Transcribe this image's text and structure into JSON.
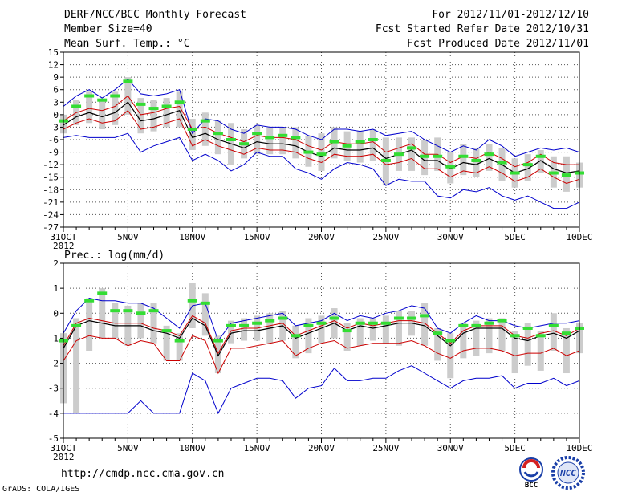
{
  "header": {
    "title": "DERF/NCC/BCC Monthly Forecast",
    "member_size": "Member Size=40",
    "variable": "Mean Surf. Temp.: °C",
    "forecast_for": "For 2012/11/01-2012/12/10",
    "fcst_started": "Fcst Started Refer Date 2012/10/31",
    "fcst_produced": "Fcst Produced Date 2012/11/01"
  },
  "footer": {
    "url": "http://cmdp.ncc.cma.gov.cn",
    "credit": "GrADS: COLA/IGES",
    "logo_bcc": "BCC",
    "logo_ncc": "NCC"
  },
  "colors": {
    "background": "#ffffff",
    "envelope": "#0000cc",
    "spread": "#cc0000",
    "mean": "#000000",
    "box": "#cccccc",
    "observed": "#33dd33",
    "grid": "#555555"
  },
  "x_axis": {
    "tick_labels": [
      "31OCT",
      "5NOV",
      "10NOV",
      "15NOV",
      "20NOV",
      "25NOV",
      "30NOV",
      "5DEC",
      "10DEC"
    ],
    "tick_days": [
      0,
      5,
      10,
      15,
      20,
      25,
      30,
      35,
      40
    ],
    "year_label": "2012",
    "day_range": [
      0,
      40
    ]
  },
  "chart_data": [
    {
      "type": "line",
      "title": "Mean Surf. Temp.: °C",
      "ylim": [
        -27,
        15
      ],
      "ytick_step": 3,
      "days": [
        0,
        1,
        2,
        3,
        4,
        5,
        6,
        7,
        8,
        9,
        10,
        11,
        12,
        13,
        14,
        15,
        16,
        17,
        18,
        19,
        20,
        21,
        22,
        23,
        24,
        25,
        26,
        27,
        28,
        29,
        30,
        31,
        32,
        33,
        34,
        35,
        36,
        37,
        38,
        39,
        40
      ],
      "series": [
        {
          "name": "max",
          "values": [
            2.0,
            4.5,
            6.0,
            4.0,
            6.0,
            8.5,
            5.0,
            4.5,
            5.0,
            6.0,
            -4.5,
            -1.0,
            -1.5,
            -3.5,
            -4.5,
            -2.5,
            -3.0,
            -3.0,
            -3.5,
            -5.0,
            -6.0,
            -3.5,
            -3.5,
            -4.0,
            -3.5,
            -5.0,
            -4.5,
            -4.0,
            -6.0,
            -7.5,
            -9.0,
            -7.5,
            -8.5,
            -6.0,
            -7.5,
            -10.0,
            -9.0,
            -8.0,
            -8.5,
            -8.0,
            -9.0
          ]
        },
        {
          "name": "upper",
          "values": [
            -1.5,
            0.5,
            1.5,
            1.0,
            2.0,
            4.5,
            0.0,
            0.5,
            1.5,
            2.0,
            -3.5,
            -3.0,
            -4.5,
            -5.5,
            -6.5,
            -5.0,
            -5.5,
            -5.5,
            -6.0,
            -7.5,
            -8.5,
            -6.5,
            -7.0,
            -7.0,
            -6.5,
            -9.0,
            -8.0,
            -7.0,
            -9.5,
            -9.5,
            -11.5,
            -10.0,
            -10.5,
            -9.0,
            -10.5,
            -12.5,
            -11.5,
            -9.5,
            -11.5,
            -12.0,
            -12.0
          ]
        },
        {
          "name": "mean",
          "values": [
            -2.5,
            -0.5,
            0.5,
            -0.5,
            0.5,
            3.0,
            -1.5,
            -1.0,
            0.0,
            1.0,
            -5.5,
            -4.5,
            -6.0,
            -7.0,
            -8.0,
            -6.5,
            -7.0,
            -7.0,
            -7.5,
            -9.0,
            -10.0,
            -8.0,
            -8.5,
            -8.5,
            -8.0,
            -10.5,
            -9.5,
            -8.5,
            -11.0,
            -11.0,
            -13.0,
            -11.5,
            -12.0,
            -10.5,
            -12.0,
            -14.0,
            -13.0,
            -11.0,
            -13.0,
            -14.0,
            -13.5
          ]
        },
        {
          "name": "lower",
          "values": [
            -3.5,
            -2.0,
            -1.0,
            -2.0,
            -1.5,
            1.0,
            -3.5,
            -3.0,
            -2.0,
            -1.0,
            -7.5,
            -6.0,
            -7.5,
            -8.5,
            -9.5,
            -8.0,
            -8.5,
            -8.5,
            -9.0,
            -10.5,
            -11.5,
            -9.5,
            -10.0,
            -10.0,
            -9.5,
            -12.0,
            -11.5,
            -10.5,
            -13.0,
            -13.0,
            -15.0,
            -13.5,
            -14.0,
            -12.5,
            -14.0,
            -16.0,
            -15.0,
            -13.0,
            -15.0,
            -16.5,
            -15.5
          ]
        },
        {
          "name": "min",
          "values": [
            -5.5,
            -5.0,
            -5.5,
            -5.5,
            -5.5,
            -4.5,
            -9.0,
            -7.5,
            -6.5,
            -5.5,
            -11.0,
            -9.5,
            -11.0,
            -13.5,
            -12.0,
            -9.0,
            -10.0,
            -10.0,
            -13.0,
            -14.0,
            -15.5,
            -13.0,
            -11.5,
            -12.0,
            -13.0,
            -17.0,
            -15.5,
            -16.0,
            -16.0,
            -19.5,
            -20.0,
            -18.0,
            -18.5,
            -17.5,
            -19.5,
            -20.5,
            -19.5,
            -21.0,
            -22.5,
            -22.5,
            -21.0
          ]
        },
        {
          "name": "observed",
          "values": [
            -1.5,
            2.0,
            4.5,
            3.5,
            4.5,
            8.0,
            2.5,
            1.5,
            2.0,
            3.0,
            -3.5,
            -1.5,
            -4.5,
            -6.0,
            -7.0,
            -4.5,
            -5.5,
            -5.0,
            -5.5,
            -9.0,
            -9.5,
            -6.5,
            -7.5,
            -6.5,
            -6.0,
            -11.0,
            -9.5,
            -8.0,
            -10.0,
            -10.0,
            -12.5,
            -10.0,
            -11.0,
            -9.5,
            -11.5,
            -14.0,
            -12.0,
            -10.0,
            -14.0,
            -14.5,
            -14.0
          ]
        },
        {
          "name": "box_high",
          "values": [
            0.0,
            3.5,
            5.5,
            3.5,
            5.5,
            9.0,
            4.0,
            3.5,
            4.0,
            5.5,
            -1.0,
            0.5,
            -1.5,
            -2.0,
            -3.5,
            -2.5,
            -3.0,
            -3.0,
            -3.0,
            -5.0,
            -4.5,
            -3.0,
            -4.0,
            -4.0,
            -3.5,
            -5.5,
            -5.5,
            -5.5,
            -6.0,
            -5.5,
            -9.0,
            -7.0,
            -8.0,
            -7.0,
            -8.0,
            -10.5,
            -9.5,
            -8.5,
            -10.0,
            -10.0,
            -11.5
          ]
        },
        {
          "name": "box_low",
          "values": [
            -4.5,
            -2.5,
            -2.0,
            -3.5,
            -2.5,
            0.0,
            -4.5,
            -4.0,
            -3.0,
            -3.0,
            -8.5,
            -7.5,
            -9.5,
            -12.0,
            -10.5,
            -9.5,
            -9.5,
            -9.5,
            -10.5,
            -12.5,
            -13.5,
            -10.5,
            -11.0,
            -11.5,
            -11.0,
            -17.0,
            -13.5,
            -13.5,
            -14.5,
            -13.5,
            -16.5,
            -14.5,
            -15.0,
            -13.5,
            -16.0,
            -17.5,
            -16.0,
            -14.0,
            -17.5,
            -18.5,
            -17.5
          ]
        }
      ]
    },
    {
      "type": "line",
      "title": "Prec.: log(mm/d)",
      "ylim": [
        -5,
        2
      ],
      "ytick_step": 1,
      "days": [
        0,
        1,
        2,
        3,
        4,
        5,
        6,
        7,
        8,
        9,
        10,
        11,
        12,
        13,
        14,
        15,
        16,
        17,
        18,
        19,
        20,
        21,
        22,
        23,
        24,
        25,
        26,
        27,
        28,
        29,
        30,
        31,
        32,
        33,
        34,
        35,
        36,
        37,
        38,
        39,
        40
      ],
      "series": [
        {
          "name": "max",
          "values": [
            -0.8,
            0.1,
            0.6,
            0.5,
            0.5,
            0.4,
            0.4,
            0.2,
            -0.2,
            -0.6,
            0.3,
            0.4,
            -1.1,
            -0.4,
            -0.3,
            -0.2,
            -0.1,
            0.0,
            -0.5,
            -0.4,
            -0.3,
            0.0,
            -0.3,
            -0.1,
            -0.2,
            0.0,
            0.1,
            0.3,
            0.2,
            -0.6,
            -0.8,
            -0.4,
            -0.1,
            -0.3,
            -0.3,
            -0.5,
            -0.6,
            -0.5,
            -0.4,
            -0.4,
            -0.3
          ]
        },
        {
          "name": "upper",
          "values": [
            -1.3,
            -0.4,
            -0.2,
            -0.3,
            -0.4,
            -0.4,
            -0.4,
            -0.6,
            -0.7,
            -0.9,
            -0.1,
            -0.4,
            -1.6,
            -0.7,
            -0.6,
            -0.6,
            -0.5,
            -0.4,
            -0.9,
            -0.7,
            -0.5,
            -0.3,
            -0.6,
            -0.4,
            -0.5,
            -0.4,
            -0.3,
            -0.3,
            -0.4,
            -0.8,
            -1.2,
            -0.7,
            -0.5,
            -0.5,
            -0.5,
            -0.9,
            -1.0,
            -0.8,
            -0.7,
            -0.9,
            -0.6
          ]
        },
        {
          "name": "mean",
          "values": [
            -1.4,
            -0.5,
            -0.3,
            -0.4,
            -0.5,
            -0.5,
            -0.5,
            -0.7,
            -0.8,
            -1.0,
            -0.2,
            -0.5,
            -1.7,
            -0.8,
            -0.7,
            -0.7,
            -0.6,
            -0.5,
            -1.0,
            -0.8,
            -0.6,
            -0.4,
            -0.7,
            -0.5,
            -0.6,
            -0.5,
            -0.4,
            -0.4,
            -0.5,
            -0.9,
            -1.3,
            -0.8,
            -0.6,
            -0.6,
            -0.6,
            -1.0,
            -1.1,
            -0.9,
            -0.8,
            -1.0,
            -0.7
          ]
        },
        {
          "name": "lower",
          "values": [
            -1.9,
            -1.1,
            -0.9,
            -1.0,
            -1.0,
            -1.3,
            -1.1,
            -1.2,
            -1.9,
            -1.9,
            -0.9,
            -1.1,
            -2.4,
            -1.4,
            -1.4,
            -1.3,
            -1.2,
            -1.1,
            -1.7,
            -1.4,
            -1.2,
            -1.1,
            -1.4,
            -1.3,
            -1.2,
            -1.2,
            -1.2,
            -1.1,
            -1.3,
            -1.6,
            -1.8,
            -1.5,
            -1.4,
            -1.4,
            -1.5,
            -1.7,
            -1.6,
            -1.6,
            -1.4,
            -1.7,
            -1.5
          ]
        },
        {
          "name": "min",
          "values": [
            -4.0,
            -4.0,
            -4.0,
            -4.0,
            -4.0,
            -4.0,
            -3.5,
            -4.0,
            -4.0,
            -4.0,
            -2.4,
            -2.7,
            -4.0,
            -3.0,
            -2.8,
            -2.6,
            -2.6,
            -2.7,
            -3.4,
            -3.0,
            -2.9,
            -2.2,
            -2.7,
            -2.7,
            -2.6,
            -2.6,
            -2.3,
            -2.1,
            -2.4,
            -2.7,
            -3.0,
            -2.7,
            -2.6,
            -2.6,
            -2.5,
            -3.0,
            -2.8,
            -2.8,
            -2.6,
            -2.9,
            -2.7
          ]
        },
        {
          "name": "observed",
          "values": [
            -1.1,
            -0.5,
            0.5,
            0.8,
            0.1,
            0.1,
            0.0,
            0.1,
            -0.7,
            -1.1,
            0.5,
            0.4,
            -1.1,
            -0.5,
            -0.5,
            -0.4,
            -0.3,
            -0.2,
            -0.9,
            -0.5,
            -0.4,
            -0.2,
            -0.7,
            -0.4,
            -0.4,
            -0.4,
            -0.2,
            -0.2,
            -0.1,
            -0.8,
            -1.1,
            -0.5,
            -0.5,
            -0.4,
            -0.3,
            -0.9,
            -0.6,
            -0.9,
            -0.5,
            -0.8,
            -0.6
          ]
        },
        {
          "name": "box_high",
          "values": [
            -0.8,
            -0.2,
            0.6,
            1.0,
            0.4,
            0.3,
            0.4,
            0.4,
            -0.5,
            -0.8,
            1.2,
            0.8,
            -0.9,
            -0.3,
            -0.2,
            -0.1,
            0.0,
            0.1,
            -0.5,
            -0.2,
            -0.1,
            0.2,
            -0.4,
            -0.2,
            -0.2,
            -0.1,
            0.1,
            0.1,
            0.4,
            -0.6,
            -0.8,
            -0.4,
            -0.3,
            -0.2,
            -0.2,
            -0.7,
            -0.4,
            -0.7,
            0.0,
            -0.6,
            -0.4
          ]
        },
        {
          "name": "box_low",
          "values": [
            -3.6,
            -4.0,
            -1.5,
            -1.0,
            -1.0,
            -1.3,
            -1.0,
            -1.2,
            -1.9,
            -1.9,
            -0.6,
            -0.9,
            -2.4,
            -1.2,
            -1.1,
            -1.1,
            -1.2,
            -1.1,
            -1.8,
            -1.6,
            -1.2,
            -1.0,
            -1.5,
            -1.3,
            -1.1,
            -1.2,
            -1.3,
            -0.9,
            -1.3,
            -1.9,
            -2.6,
            -1.8,
            -1.7,
            -1.6,
            -1.5,
            -2.4,
            -2.1,
            -2.3,
            -1.5,
            -2.4,
            -1.6
          ]
        }
      ]
    }
  ]
}
